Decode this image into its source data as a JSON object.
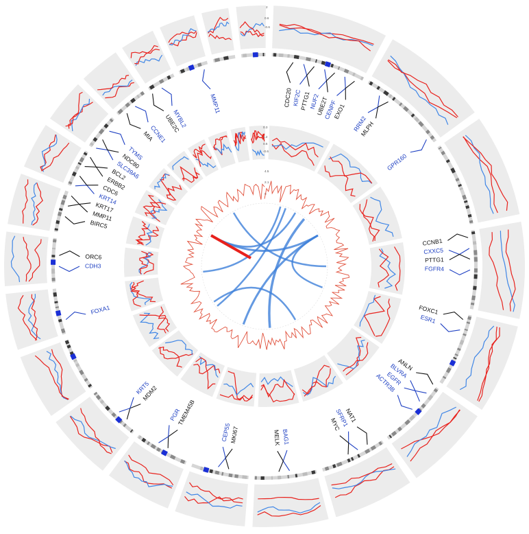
{
  "figure": {
    "background": "#ffffff",
    "panel_color": "#ececec",
    "colors": {
      "red": "#e8211c",
      "blue": "#3f86e6",
      "black": "#111111",
      "gene_blue": "#1d3fc2",
      "link": "#3d7fd9",
      "cn_line": "#e0503b"
    }
  },
  "chart_data": {
    "type": "circos",
    "genes": [
      {
        "name": "CDC20",
        "color": "black"
      },
      {
        "name": "KIF2C",
        "color": "blue"
      },
      {
        "name": "PTTG1",
        "color": "black"
      },
      {
        "name": "NUF2",
        "color": "blue"
      },
      {
        "name": "UBE2T",
        "color": "black"
      },
      {
        "name": "CENPF",
        "color": "blue"
      },
      {
        "name": "EXO1",
        "color": "black"
      },
      {
        "name": "RRM2",
        "color": "blue"
      },
      {
        "name": "MLPH",
        "color": "black"
      },
      {
        "name": "GPR160",
        "color": "blue"
      },
      {
        "name": "CCNB1",
        "color": "black"
      },
      {
        "name": "CXXC5",
        "color": "blue"
      },
      {
        "name": "PTTG1",
        "color": "black"
      },
      {
        "name": "FGFR4",
        "color": "blue"
      },
      {
        "name": "FOXC1",
        "color": "black"
      },
      {
        "name": "ESR1",
        "color": "blue"
      },
      {
        "name": "ANLN",
        "color": "black"
      },
      {
        "name": "BLVRA",
        "color": "blue"
      },
      {
        "name": "EGFR",
        "color": "blue"
      },
      {
        "name": "ACTR3B",
        "color": "blue"
      },
      {
        "name": "NAT1",
        "color": "black"
      },
      {
        "name": "SFRP1",
        "color": "blue"
      },
      {
        "name": "MYC",
        "color": "black"
      },
      {
        "name": "BAG1",
        "color": "blue"
      },
      {
        "name": "MELK",
        "color": "black"
      },
      {
        "name": "MKI67",
        "color": "black"
      },
      {
        "name": "CEP55",
        "color": "blue"
      },
      {
        "name": "TMEM45B",
        "color": "black"
      },
      {
        "name": "PGR",
        "color": "blue"
      },
      {
        "name": "MDM2",
        "color": "black"
      },
      {
        "name": "KRT5",
        "color": "blue"
      },
      {
        "name": "FOXA1",
        "color": "blue"
      },
      {
        "name": "CDH3",
        "color": "blue"
      },
      {
        "name": "ORC6",
        "color": "black"
      },
      {
        "name": "BIRC5",
        "color": "black"
      },
      {
        "name": "MMP11",
        "color": "black"
      },
      {
        "name": "KRT17",
        "color": "black"
      },
      {
        "name": "KRT14",
        "color": "blue"
      },
      {
        "name": "CDC6",
        "color": "black"
      },
      {
        "name": "ERBB2",
        "color": "black"
      },
      {
        "name": "BCL2",
        "color": "black"
      },
      {
        "name": "SLC39A6",
        "color": "blue"
      },
      {
        "name": "NDC80",
        "color": "black"
      },
      {
        "name": "TYMS",
        "color": "blue"
      },
      {
        "name": "MIA",
        "color": "black"
      },
      {
        "name": "CCNE1",
        "color": "blue"
      },
      {
        "name": "UBE2C",
        "color": "black"
      },
      {
        "name": "MYBL2",
        "color": "blue"
      },
      {
        "name": "MMP11",
        "color": "blue"
      }
    ],
    "outer_track_ticks": [
      "2",
      "0.6",
      "-0.6"
    ],
    "middle_track_ticks": [
      "0.3",
      "1.2",
      "0.6",
      "-0.6"
    ],
    "inner_track_ticks": [
      "4.5",
      "2.1",
      "0"
    ]
  }
}
